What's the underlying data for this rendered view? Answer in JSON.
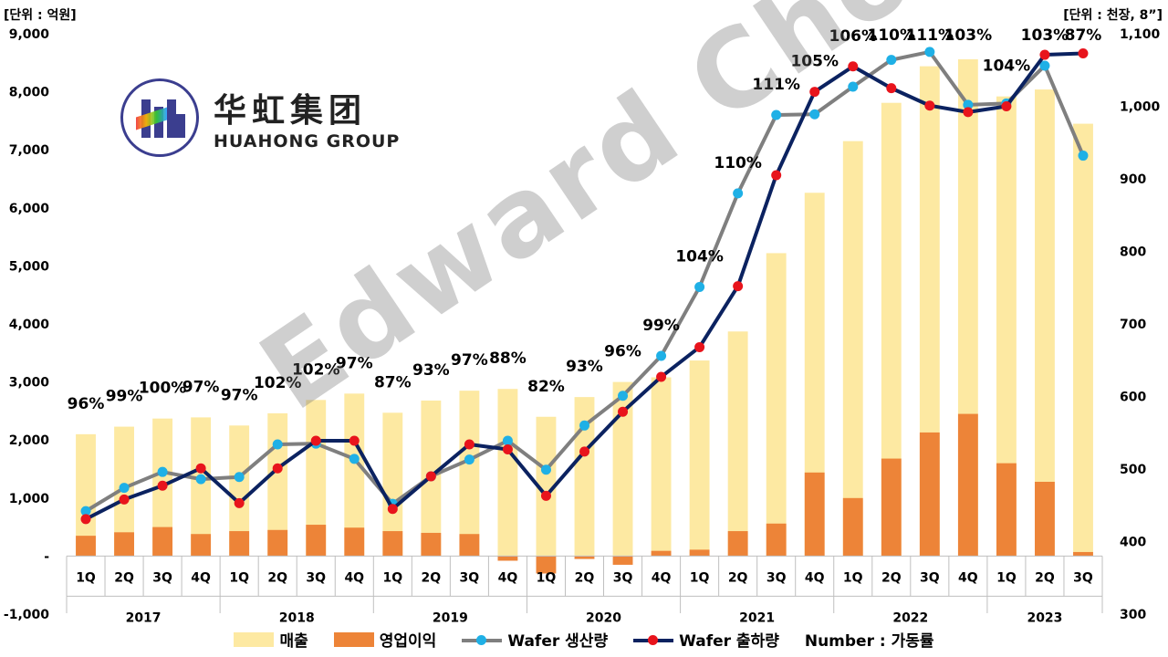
{
  "unit_left": "[단위 : 억원]",
  "unit_right": "[단위 : 천장, 8”]",
  "logo": {
    "cn": "华虹集团",
    "en": "HUAHONG GROUP"
  },
  "watermark": "Edward Choi",
  "legend": {
    "sales": "매출",
    "op_profit": "영업이익",
    "wafer_prod": "Wafer 생산량",
    "wafer_ship": "Wafer 출하량",
    "note": "Number : 가동률"
  },
  "colors": {
    "sales": "#fde9a2",
    "op_profit": "#ed8438",
    "wafer_prod_line": "#7f7f7f",
    "wafer_prod_marker": "#1fb0e6",
    "wafer_ship_line": "#0b2260",
    "wafer_ship_marker": "#e8141c"
  },
  "chart_data": {
    "type": "bar+line",
    "quarters": [
      "1Q",
      "2Q",
      "3Q",
      "4Q",
      "1Q",
      "2Q",
      "3Q",
      "4Q",
      "1Q",
      "2Q",
      "3Q",
      "4Q",
      "1Q",
      "2Q",
      "3Q",
      "4Q",
      "1Q",
      "2Q",
      "3Q",
      "4Q",
      "1Q",
      "2Q",
      "3Q",
      "4Q",
      "1Q",
      "2Q",
      "3Q"
    ],
    "years": [
      {
        "label": "2017",
        "count": 4
      },
      {
        "label": "2018",
        "count": 4
      },
      {
        "label": "2019",
        "count": 4
      },
      {
        "label": "2020",
        "count": 4
      },
      {
        "label": "2021",
        "count": 4
      },
      {
        "label": "2022",
        "count": 4
      },
      {
        "label": "2023",
        "count": 3
      }
    ],
    "y_left": {
      "min": -1000,
      "max": 9000,
      "ticks": [
        -1000,
        0,
        1000,
        2000,
        3000,
        4000,
        5000,
        6000,
        7000,
        8000,
        9000
      ],
      "tick_labels": [
        "-1,000",
        "-",
        "1,000",
        "2,000",
        "3,000",
        "4,000",
        "5,000",
        "6,000",
        "7,000",
        "8,000",
        "9,000"
      ]
    },
    "y_right": {
      "min": 300,
      "max": 1100,
      "ticks": [
        300,
        400,
        500,
        600,
        700,
        800,
        900,
        1000,
        1100
      ],
      "tick_labels": [
        "300",
        "400",
        "500",
        "600",
        "700",
        "800",
        "900",
        "1,000",
        "1,100"
      ]
    },
    "series": [
      {
        "name": "매출",
        "axis": "left",
        "kind": "bar",
        "values": [
          2100,
          2230,
          2370,
          2390,
          2250,
          2460,
          2690,
          2800,
          2470,
          2680,
          2850,
          2880,
          2400,
          2740,
          3000,
          3080,
          3370,
          3870,
          5220,
          6260,
          7150,
          7810,
          8440,
          8560,
          7920,
          8040,
          7450
        ]
      },
      {
        "name": "영업이익",
        "axis": "left",
        "kind": "bar",
        "values": [
          350,
          410,
          500,
          380,
          430,
          450,
          540,
          490,
          430,
          400,
          380,
          -80,
          -300,
          -50,
          -150,
          90,
          110,
          430,
          560,
          1440,
          1000,
          1680,
          2130,
          2450,
          1600,
          1280,
          70
        ]
      },
      {
        "name": "Wafer 생산량",
        "axis": "right",
        "kind": "line",
        "values": [
          442,
          474,
          496,
          486,
          489,
          534,
          535,
          514,
          452,
          490,
          513,
          539,
          499,
          560,
          601,
          656,
          751,
          880,
          988,
          989,
          1027,
          1064,
          1075,
          1002,
          1004,
          1056,
          932
        ]
      },
      {
        "name": "Wafer 출하량",
        "axis": "right",
        "kind": "line",
        "values": [
          431,
          458,
          477,
          501,
          453,
          501,
          539,
          539,
          445,
          490,
          534,
          527,
          463,
          524,
          579,
          627,
          668,
          752,
          905,
          1020,
          1055,
          1025,
          1001,
          992,
          1000,
          1071,
          1073
        ]
      }
    ],
    "utilization": [
      "96%",
      "99%",
      "100%",
      "97%",
      "97%",
      "102%",
      "102%",
      "97%",
      "87%",
      "93%",
      "97%",
      "88%",
      "82%",
      "93%",
      "96%",
      "99%",
      "104%",
      "110%",
      "111%",
      "105%",
      "106%",
      "110%",
      "111%",
      "103%",
      "104%",
      "103%",
      "87%"
    ]
  }
}
